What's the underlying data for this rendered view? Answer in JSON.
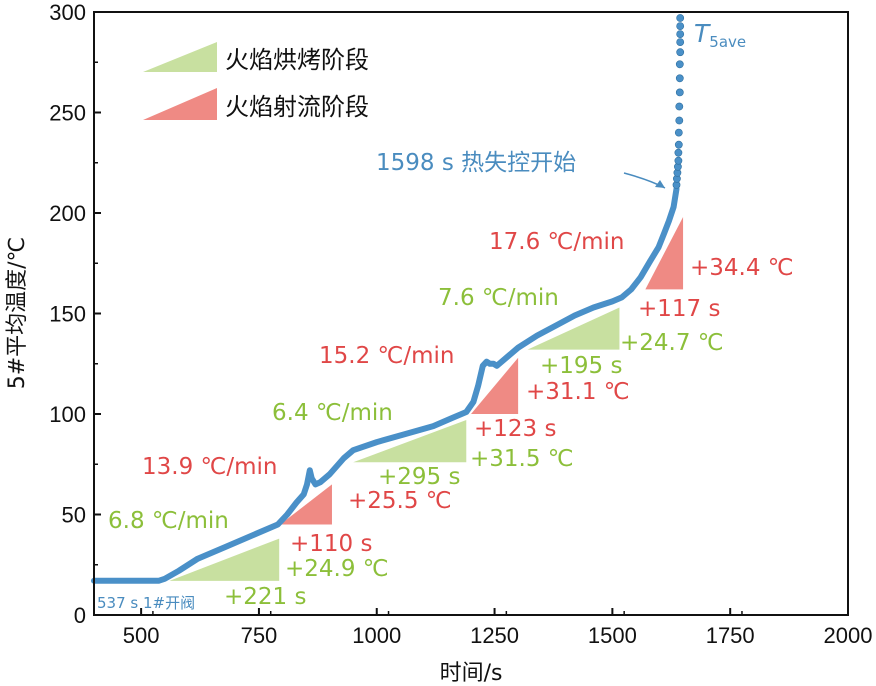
{
  "chart_data": {
    "type": "line",
    "xlabel": "时间/s",
    "ylabel": "5#平均温度/℃",
    "xlim": [
      400,
      2000
    ],
    "ylim": [
      0,
      300
    ],
    "xticks": [
      500,
      750,
      1000,
      1250,
      1500,
      1750,
      2000
    ],
    "yticks": [
      0,
      50,
      100,
      150,
      200,
      250,
      300
    ],
    "grid": false,
    "legend_position": "top-left",
    "legend": [
      {
        "label": "火焰烘烤阶段",
        "color": "#c8e0a0"
      },
      {
        "label": "火焰射流阶段",
        "color": "#ef8a84"
      }
    ],
    "series": [
      {
        "name": "T5ave",
        "name_base": "T",
        "name_sub": "5ave",
        "color": "#4a90c8",
        "x": [
          400,
          537,
          550,
          580,
          620,
          680,
          740,
          790,
          810,
          830,
          845,
          852,
          858,
          862,
          870,
          880,
          900,
          930,
          950,
          1000,
          1060,
          1120,
          1160,
          1190,
          1205,
          1215,
          1225,
          1233,
          1240,
          1248,
          1255,
          1265,
          1280,
          1300,
          1340,
          1380,
          1420,
          1460,
          1500,
          1520,
          1540,
          1560,
          1580,
          1598,
          1610,
          1620,
          1630,
          1636
        ],
        "y": [
          17,
          17,
          18,
          22,
          28,
          34,
          40,
          45,
          50,
          56,
          60,
          65,
          72,
          68,
          65,
          66,
          70,
          78,
          82,
          86,
          90,
          94,
          98,
          101,
          106,
          114,
          124,
          126,
          125,
          125,
          124,
          126,
          129,
          133,
          139,
          144,
          149,
          153,
          156,
          158,
          162,
          168,
          176,
          183,
          190,
          196,
          203,
          212
        ]
      },
      {
        "name": "T5ave-dots",
        "color": "#4a90c8",
        "x": [
          1636,
          1637,
          1638,
          1639,
          1640,
          1640,
          1641,
          1641,
          1642,
          1642,
          1643,
          1643,
          1643,
          1644,
          1644,
          1644,
          1644,
          1644
        ],
        "y": [
          214,
          217,
          220,
          223,
          226,
          230,
          234,
          240,
          246,
          253,
          260,
          267,
          274,
          280,
          285,
          289,
          293,
          297
        ]
      }
    ],
    "stages": [
      {
        "type": "baking",
        "x0": 560,
        "x1": 793,
        "y_low": 17,
        "y_high": 38,
        "rate": "6.8 ℃/min",
        "dt": "+221 s",
        "dT": "+24.9 ℃"
      },
      {
        "type": "jet",
        "x0": 795,
        "x1": 905,
        "y_low": 45,
        "y_high": 65,
        "rate": "13.9 ℃/min",
        "dt": "+110 s",
        "dT": "+25.5 ℃"
      },
      {
        "type": "baking",
        "x0": 950,
        "x1": 1190,
        "y_low": 76,
        "y_high": 97,
        "rate": "6.4 ℃/min",
        "dt": "+295 s",
        "dT": "+31.5 ℃"
      },
      {
        "type": "jet",
        "x0": 1200,
        "x1": 1300,
        "y_low": 100,
        "y_high": 128,
        "rate": "15.2 ℃/min",
        "dt": "+123 s",
        "dT": "+31.1 ℃"
      },
      {
        "type": "baking",
        "x0": 1320,
        "x1": 1515,
        "y_low": 132,
        "y_high": 153,
        "rate": "7.6 ℃/min",
        "dt": "+195 s",
        "dT": "+24.7 ℃"
      },
      {
        "type": "jet",
        "x0": 1570,
        "x1": 1650,
        "y_low": 162,
        "y_high": 198,
        "rate": "17.6 ℃/min",
        "dt": "+117 s",
        "dT": "+34.4 ℃"
      }
    ],
    "annotations": {
      "runaway": "1598 s 热失控开始",
      "valve": "537 s 1#开阀"
    }
  }
}
